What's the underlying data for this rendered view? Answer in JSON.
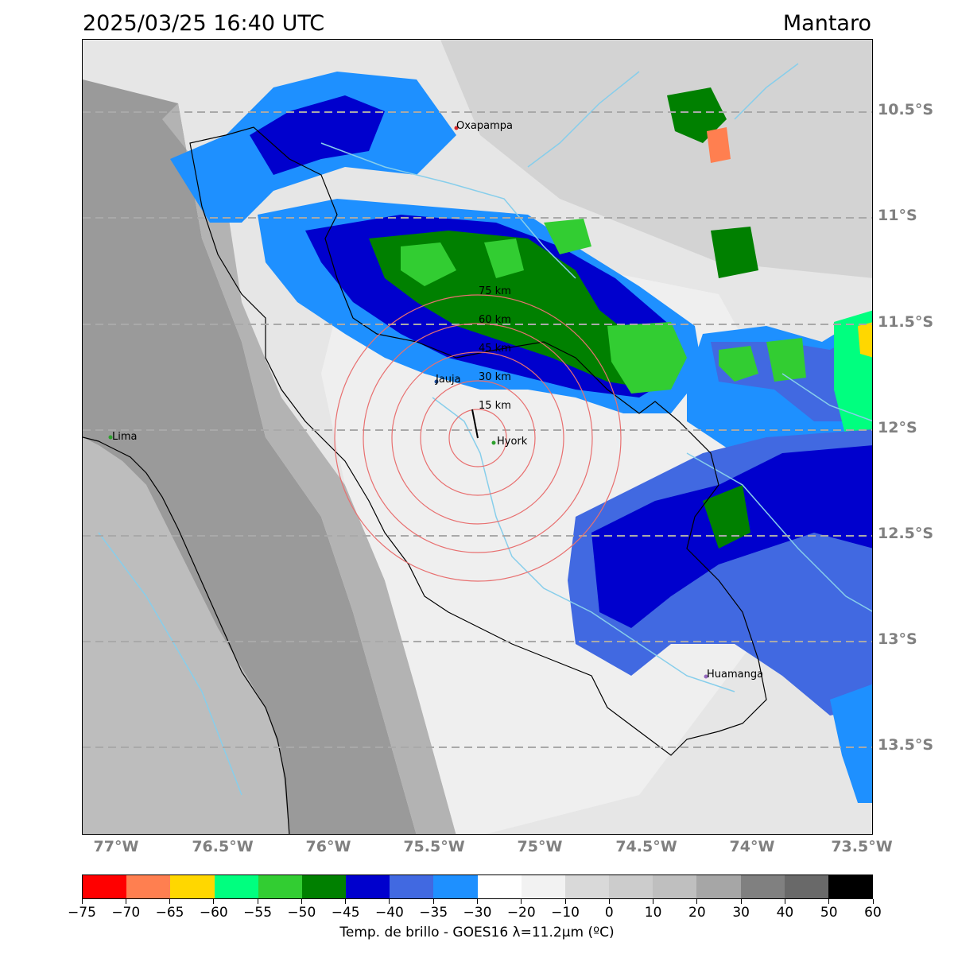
{
  "title_left": "2025/03/25 16:40 UTC",
  "title_right": "Mantaro",
  "lat_labels": [
    "10.5°S",
    "11°S",
    "11.5°S",
    "12°S",
    "12.5°S",
    "13°S",
    "13.5°S"
  ],
  "lon_labels": [
    "77°W",
    "76.5°W",
    "76°W",
    "75.5°W",
    "75°W",
    "74.5°W",
    "74°W",
    "73.5°W"
  ],
  "cities": [
    {
      "name": "Oxapampa",
      "color": "#d62728"
    },
    {
      "name": "Jauja",
      "color": "#1f4e9c"
    },
    {
      "name": "Hyork",
      "color": "#2ca02c"
    },
    {
      "name": "Lima",
      "color": "#2ca02c"
    },
    {
      "name": "Huamanga",
      "color": "#9467bd"
    }
  ],
  "range_rings": [
    "15 km",
    "30 km",
    "45 km",
    "60 km",
    "75 km"
  ],
  "colorbar": {
    "label": "Temp. de brillo - GOES16 λ=11.2μm (ºC)",
    "ticks": [
      "−75",
      "−70",
      "−65",
      "−60",
      "−55",
      "−50",
      "−45",
      "−40",
      "−35",
      "−30",
      "−20",
      "−10",
      "0",
      "10",
      "20",
      "30",
      "40",
      "50",
      "60"
    ],
    "colors": [
      "#ff0000",
      "#ff7f50",
      "#ffd700",
      "#00ff7f",
      "#32cd32",
      "#008000",
      "#0000cd",
      "#4169e1",
      "#1e90ff",
      "#ffffff",
      "#f2f2f2",
      "#d9d9d9",
      "#cccccc",
      "#bfbfbf",
      "#a6a6a6",
      "#808080",
      "#696969",
      "#000000"
    ]
  }
}
